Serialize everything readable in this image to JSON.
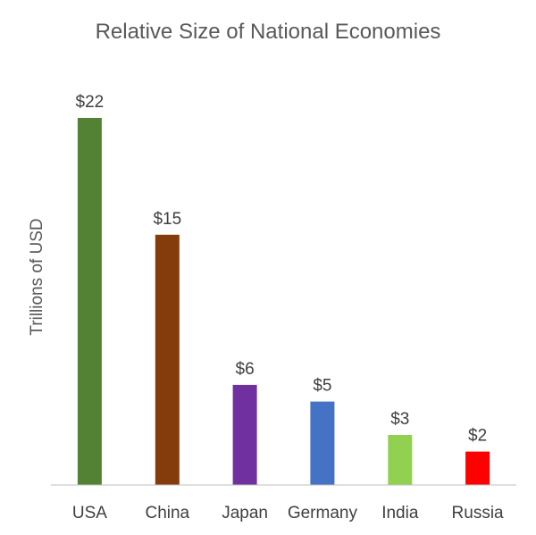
{
  "chart_data": {
    "type": "bar",
    "title": "Relative Size of National Economies",
    "xlabel": "",
    "ylabel": "Trillions of USD",
    "categories": [
      "USA",
      "China",
      "Japan",
      "Germany",
      "India",
      "Russia"
    ],
    "values": [
      22,
      15,
      6,
      5,
      3,
      2
    ],
    "data_labels": [
      "$22",
      "$15",
      "$6",
      "$5",
      "$3",
      "$2"
    ],
    "bar_colors": [
      "#548235",
      "#843c0c",
      "#7030a0",
      "#4472c4",
      "#92d050",
      "#ff0000"
    ],
    "ylim": [
      0,
      22
    ],
    "grid": false,
    "legend": "none"
  }
}
